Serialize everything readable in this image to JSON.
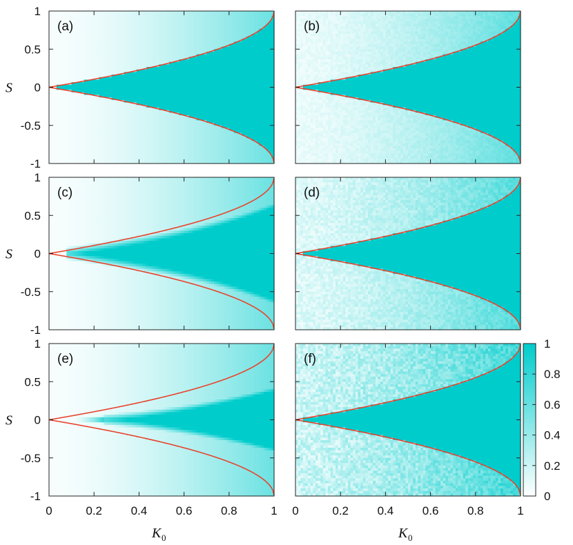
{
  "chart_data": [
    {
      "type": "heatmap",
      "panel": "(a)",
      "xlabel": "",
      "ylabel": "S",
      "xlim": [
        0,
        1
      ],
      "ylim": [
        -1,
        1
      ],
      "xticks": [],
      "yticks": [
        "-1",
        "-0.5",
        "0",
        "0.5",
        "1"
      ],
      "fill": "sharp",
      "noise": 0.0
    },
    {
      "type": "heatmap",
      "panel": "(b)",
      "xlabel": "",
      "ylabel": "",
      "xlim": [
        0,
        1
      ],
      "ylim": [
        -1,
        1
      ],
      "xticks": [],
      "yticks": [],
      "fill": "sharp",
      "noise": 0.04
    },
    {
      "type": "heatmap",
      "panel": "(c)",
      "xlabel": "",
      "ylabel": "S",
      "xlim": [
        0,
        1
      ],
      "ylim": [
        -1,
        1
      ],
      "xticks": [],
      "yticks": [
        "-1",
        "-0.5",
        "0",
        "0.5",
        "1"
      ],
      "fill": "soft_c",
      "noise": 0.0
    },
    {
      "type": "heatmap",
      "panel": "(d)",
      "xlabel": "",
      "ylabel": "",
      "xlim": [
        0,
        1
      ],
      "ylim": [
        -1,
        1
      ],
      "xticks": [],
      "yticks": [],
      "fill": "sharp",
      "noise": 0.08
    },
    {
      "type": "heatmap",
      "panel": "(e)",
      "xlabel": "K",
      "xlabel_sub": "0",
      "ylabel": "S",
      "xlim": [
        0,
        1
      ],
      "ylim": [
        -1,
        1
      ],
      "xticks": [
        "0",
        "0.2",
        "0.4",
        "0.6",
        "0.8",
        "1"
      ],
      "yticks": [
        "-1",
        "-0.5",
        "0",
        "0.5",
        "1"
      ],
      "fill": "soft_e",
      "noise": 0.0
    },
    {
      "type": "heatmap",
      "panel": "(f)",
      "xlabel": "K",
      "xlabel_sub": "0",
      "ylabel": "",
      "xlim": [
        0,
        1
      ],
      "ylim": [
        -1,
        1
      ],
      "xticks": [
        "0",
        "0.2",
        "0.4",
        "0.6",
        "0.8",
        "1"
      ],
      "yticks": [],
      "fill": "sharp",
      "noise": 0.14
    }
  ],
  "boundary": {
    "color": "#e8432c",
    "shape": "S = ±(1 - sqrt(1 - K0))"
  },
  "colorbar": {
    "min": 0,
    "max": 1,
    "ticks": [
      "0",
      "0.2",
      "0.4",
      "0.6",
      "0.8",
      "1"
    ],
    "low_color": "#ffffff",
    "high_color": "#00cccc"
  }
}
